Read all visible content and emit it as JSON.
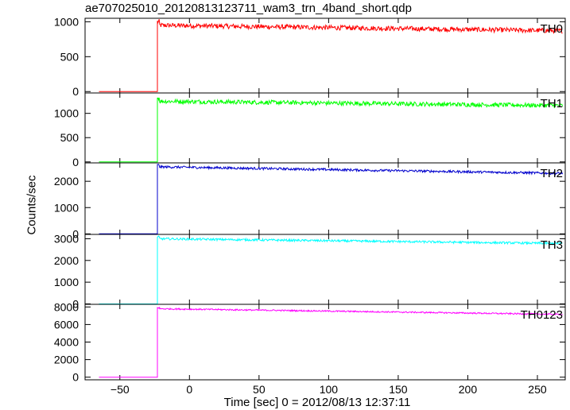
{
  "title": "ae707025010_20120813123711_wam3_trn_4band_short.qdp",
  "ylabel": "Counts/sec",
  "xlabel": "Time [sec] 0 = 2012/08/13 12:37:11",
  "chart_data": [
    {
      "type": "line",
      "series": [
        {
          "name": "TH0",
          "color": "#ff0000"
        }
      ],
      "label": "TH0",
      "xlim": [
        -75,
        270
      ],
      "ylim": [
        -20,
        1050
      ],
      "yticks": [
        0,
        500,
        1000
      ],
      "baseline": 0,
      "onset_x": -23,
      "x_start": -65,
      "level_start": 950,
      "level_end": 870,
      "noise": 35
    },
    {
      "type": "line",
      "series": [
        {
          "name": "TH1",
          "color": "#00ff00"
        }
      ],
      "label": "TH1",
      "xlim": [
        -75,
        270
      ],
      "ylim": [
        -20,
        1420
      ],
      "yticks": [
        0,
        500,
        1000
      ],
      "baseline": 0,
      "onset_x": -23,
      "x_start": -65,
      "level_start": 1250,
      "level_end": 1160,
      "noise": 45
    },
    {
      "type": "line",
      "series": [
        {
          "name": "TH2",
          "color": "#0000cd"
        }
      ],
      "label": "TH2",
      "xlim": [
        -75,
        270
      ],
      "ylim": [
        -20,
        2700
      ],
      "yticks": [
        0,
        1000,
        2000
      ],
      "baseline": 0,
      "onset_x": -23,
      "x_start": -65,
      "level_start": 2550,
      "level_end": 2300,
      "noise": 45
    },
    {
      "type": "line",
      "series": [
        {
          "name": "TH3",
          "color": "#00ffff"
        }
      ],
      "label": "TH3",
      "xlim": [
        -75,
        270
      ],
      "ylim": [
        -20,
        3200
      ],
      "yticks": [
        0,
        1000,
        2000,
        3000
      ],
      "baseline": 0,
      "onset_x": -23,
      "x_start": -65,
      "level_start": 3000,
      "level_end": 2780,
      "noise": 50
    },
    {
      "type": "line",
      "series": [
        {
          "name": "TH0123",
          "color": "#ff00ff"
        }
      ],
      "label": "TH0123",
      "xlim": [
        -75,
        270
      ],
      "ylim": [
        -300,
        8300
      ],
      "yticks": [
        0,
        2000,
        4000,
        6000,
        8000
      ],
      "xticks": [
        -50,
        0,
        50,
        100,
        150,
        200,
        250
      ],
      "baseline": 0,
      "onset_x": -23,
      "x_start": -65,
      "level_start": 7800,
      "level_end": 7150,
      "noise": 80
    }
  ]
}
